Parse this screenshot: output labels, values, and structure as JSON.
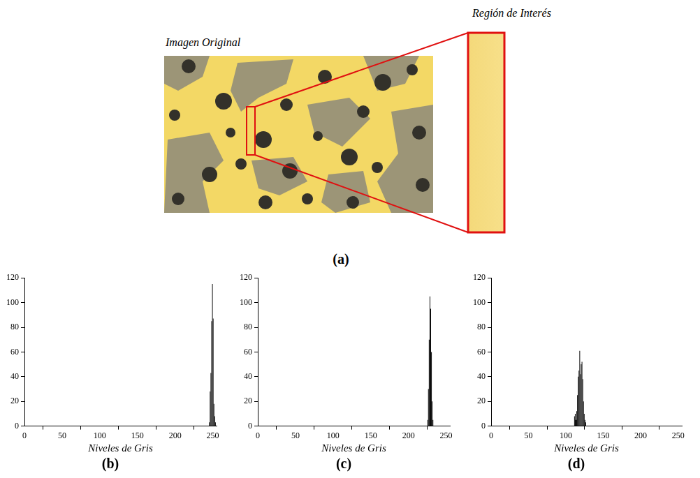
{
  "figure": {
    "image_title": "Imagen Original",
    "roi_title": "Región de Interés",
    "panel_label": "(a)"
  },
  "chart_data": [
    {
      "type": "histogram",
      "title": "(b)",
      "x_label": "Niveles de Gris",
      "bins": [
        245,
        246,
        247,
        248,
        249,
        250,
        251,
        252,
        253,
        254
      ],
      "counts": [
        3,
        28,
        43,
        85,
        115,
        87,
        18,
        8,
        3
      ],
      "color": "#000000",
      "xlim": [
        0,
        255
      ],
      "xticks": [
        0,
        50,
        100,
        150,
        200,
        250
      ],
      "ylim": [
        0,
        120
      ],
      "yticks": [
        0,
        20,
        40,
        60,
        80,
        100,
        120
      ],
      "grid": false
    },
    {
      "type": "histogram",
      "title": "(c)",
      "x_label": "Niveles de Gris",
      "bins": [
        225,
        226,
        227,
        228,
        229,
        230,
        231,
        232,
        233
      ],
      "counts": [
        5,
        30,
        70,
        105,
        95,
        60,
        20,
        5
      ],
      "color": "#000000",
      "xlim": [
        0,
        255
      ],
      "xticks": [
        0,
        50,
        100,
        150,
        200,
        250
      ],
      "ylim": [
        0,
        120
      ],
      "yticks": [
        0,
        20,
        40,
        60,
        80,
        100,
        120
      ],
      "grid": false
    },
    {
      "type": "histogram",
      "title": "(d)",
      "x_label": "Niveles de Gris",
      "bins": [
        111,
        112,
        113,
        114,
        115,
        116,
        117,
        118,
        119,
        120,
        121,
        122,
        123,
        124,
        125,
        126,
        127
      ],
      "counts": [
        8,
        10,
        5,
        12,
        25,
        40,
        45,
        61,
        42,
        50,
        52,
        38,
        20,
        10,
        5,
        3
      ],
      "color": "#000000",
      "xlim": [
        0,
        255
      ],
      "xticks": [
        0,
        50,
        100,
        150,
        200,
        250
      ],
      "ylim": [
        0,
        120
      ],
      "yticks": [
        0,
        20,
        40,
        60,
        80,
        100,
        120
      ],
      "grid": false
    }
  ]
}
